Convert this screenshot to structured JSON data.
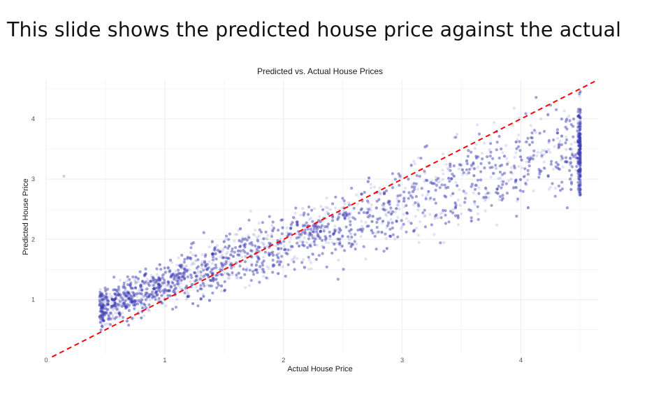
{
  "slide": {
    "title": "This slide shows the predicted house price against the actual"
  },
  "chart_data": {
    "type": "scatter",
    "title": "Predicted vs. Actual House Prices",
    "xlabel": "Actual House Price",
    "ylabel": "Predicted House Price",
    "xlim": [
      0,
      4.65
    ],
    "ylim": [
      0.1,
      4.65
    ],
    "x_ticks": [
      0,
      1,
      2,
      3,
      4
    ],
    "y_ticks": [
      1,
      2,
      3,
      4
    ],
    "grid": true,
    "legend": "none",
    "point_color": "#3b3bb3",
    "point_opacity": 0.15,
    "reference_line": {
      "slope": 1,
      "intercept": 0,
      "style": "dashed",
      "color": "#ff0000"
    },
    "point_count": 6000,
    "series": [
      {
        "x": [
          0.15,
          0.3,
          0.35,
          0.45,
          0.5,
          0.55,
          0.6,
          0.65,
          0.7,
          0.75,
          0.8,
          0.85,
          0.9,
          0.95,
          1.0,
          1.05,
          1.1,
          1.15,
          1.2,
          1.25,
          1.3,
          1.35,
          1.4,
          1.45,
          1.5,
          1.55,
          1.6,
          1.65,
          1.7,
          1.75,
          1.8,
          1.85,
          1.9,
          1.95,
          2.0,
          2.05,
          2.1,
          2.15,
          2.2,
          2.25,
          2.3,
          2.35,
          2.4,
          2.45,
          2.5,
          2.55,
          2.6,
          2.65,
          2.7,
          2.75,
          2.8,
          2.85,
          2.9,
          2.95,
          3.0,
          3.05,
          3.1,
          3.15,
          3.2,
          3.25,
          3.3,
          3.35,
          3.4,
          3.45,
          3.5,
          3.55,
          3.6,
          3.65,
          3.7,
          3.75,
          3.8,
          3.85,
          3.9,
          3.95,
          4.0,
          4.05,
          4.1,
          4.15,
          4.2,
          4.25,
          4.3,
          4.35,
          4.4,
          4.45,
          4.5
        ],
        "y": [
          3.05,
          0.95,
          0.8,
          0.85,
          0.9,
          0.92,
          0.95,
          1.0,
          1.05,
          1.08,
          1.1,
          1.15,
          1.2,
          1.22,
          1.25,
          1.28,
          1.32,
          1.35,
          1.4,
          1.42,
          1.45,
          1.48,
          1.52,
          1.55,
          1.6,
          1.62,
          1.65,
          1.7,
          1.72,
          1.75,
          1.78,
          1.82,
          1.85,
          1.88,
          1.92,
          1.95,
          1.98,
          2.02,
          2.05,
          2.08,
          2.12,
          2.15,
          2.18,
          2.22,
          2.25,
          2.28,
          2.32,
          2.35,
          2.38,
          2.42,
          2.45,
          2.48,
          2.52,
          2.55,
          2.58,
          2.62,
          2.65,
          2.68,
          2.72,
          2.75,
          2.78,
          2.82,
          2.85,
          2.88,
          2.92,
          2.95,
          2.98,
          3.02,
          3.05,
          3.08,
          3.12,
          3.15,
          3.18,
          3.22,
          3.25,
          3.28,
          3.32,
          3.35,
          3.38,
          3.42,
          3.45,
          3.48,
          3.52,
          3.55,
          3.5
        ]
      }
    ]
  }
}
